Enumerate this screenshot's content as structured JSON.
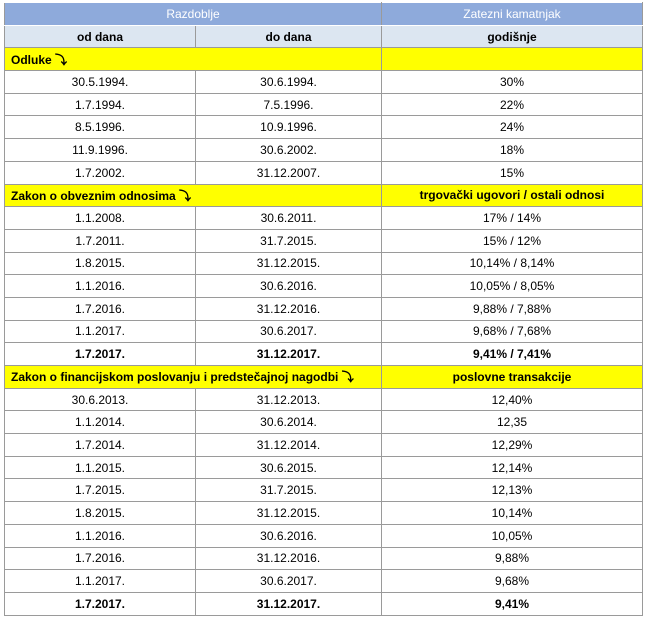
{
  "header": {
    "period": "Razdoblje",
    "rate": "Zatezni kamatnjak",
    "from": "od dana",
    "to": "do dana",
    "annual": "godišnje"
  },
  "sections": [
    {
      "title": "Odluke ⤵",
      "rate_label": null,
      "bold_rows": [],
      "rows": [
        [
          "30.5.1994.",
          "30.6.1994.",
          "30%"
        ],
        [
          "1.7.1994.",
          "7.5.1996.",
          "22%"
        ],
        [
          "8.5.1996.",
          "10.9.1996.",
          "24%"
        ],
        [
          "11.9.1996.",
          "30.6.2002.",
          "18%"
        ],
        [
          "1.7.2002.",
          "31.12.2007.",
          "15%"
        ]
      ]
    },
    {
      "title": "Zakon o obveznim odnosima ⤵",
      "rate_label": "trgovački ugovori / ostali odnosi",
      "bold_rows": [
        6
      ],
      "rows": [
        [
          "1.1.2008.",
          "30.6.2011.",
          "17% / 14%"
        ],
        [
          "1.7.2011.",
          "31.7.2015.",
          "15% / 12%"
        ],
        [
          "1.8.2015.",
          "31.12.2015.",
          "10,14% / 8,14%"
        ],
        [
          "1.1.2016.",
          "30.6.2016.",
          "10,05% / 8,05%"
        ],
        [
          "1.7.2016.",
          "31.12.2016.",
          "9,88% / 7,88%"
        ],
        [
          "1.1.2017.",
          "30.6.2017.",
          "9,68% / 7,68%"
        ],
        [
          "1.7.2017.",
          "31.12.2017.",
          "9,41% / 7,41%"
        ]
      ]
    },
    {
      "title": "Zakon o financijskom poslovanju i predstečajnoj nagodbi ⤵",
      "rate_label": "poslovne transakcije",
      "bold_rows": [
        9
      ],
      "rows": [
        [
          "30.6.2013.",
          "31.12.2013.",
          "12,40%"
        ],
        [
          "1.1.2014.",
          "30.6.2014.",
          "12,35"
        ],
        [
          "1.7.2014.",
          "31.12.2014.",
          "12,29%"
        ],
        [
          "1.1.2015.",
          "30.6.2015.",
          "12,14%"
        ],
        [
          "1.7.2015.",
          "31.7.2015.",
          "12,13%"
        ],
        [
          "1.8.2015.",
          "31.12.2015.",
          "10,14%"
        ],
        [
          "1.1.2016.",
          "30.6.2016.",
          "10,05%"
        ],
        [
          "1.7.2016.",
          "31.12.2016.",
          "9,88%"
        ],
        [
          "1.1.2017.",
          "30.6.2017.",
          "9,68%"
        ],
        [
          "1.7.2017.",
          "31.12.2017.",
          "9,41%"
        ]
      ]
    }
  ]
}
